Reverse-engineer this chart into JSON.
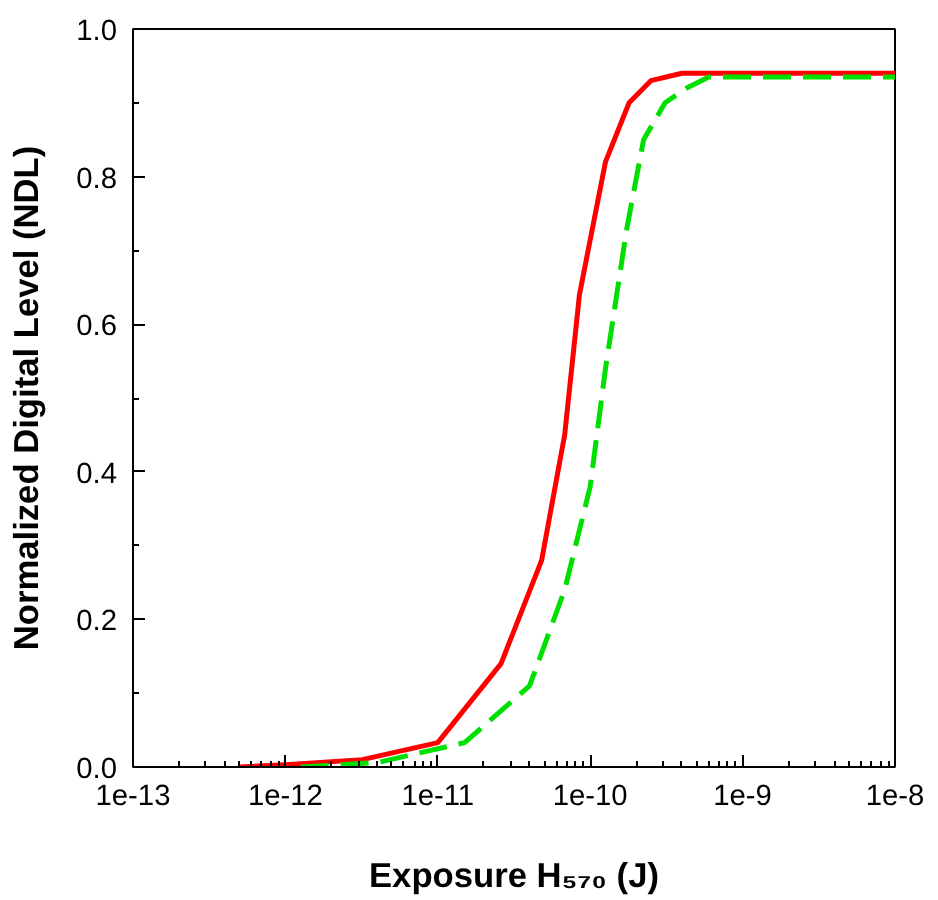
{
  "chart_data": {
    "type": "line",
    "xlabel": "Exposure H₅₇₀ (J)",
    "ylabel": "Normalized Digital Level (NDL)",
    "log": "x",
    "grid": false,
    "marker": "none",
    "xlim": [
      1e-13,
      1e-08
    ],
    "xticks": [
      {
        "value": 1e-13,
        "label": "1e-13"
      },
      {
        "value": 1e-12,
        "label": "1e-12"
      },
      {
        "value": 1e-11,
        "label": "1e-11"
      },
      {
        "value": 1e-10,
        "label": "1e-10"
      },
      {
        "value": 1e-09,
        "label": "1e-9"
      },
      {
        "value": 1e-08,
        "label": "1e-8"
      }
    ],
    "ylim": [
      0,
      1
    ],
    "yticks": [
      {
        "value": 0,
        "label": "0.0"
      },
      {
        "value": 0.2,
        "label": "0.2"
      },
      {
        "value": 0.4,
        "label": "0.4"
      },
      {
        "value": 0.6,
        "label": "0.6"
      },
      {
        "value": 0.8,
        "label": "0.8"
      },
      {
        "value": 1,
        "label": "1.0"
      }
    ],
    "series": [
      {
        "color": "#ff0000",
        "line_style": "solid",
        "x": [
          5e-13,
          1e-12,
          3.2e-12,
          1e-11,
          2.6e-11,
          4.8e-11,
          6.8e-11,
          8.5e-11,
          1.26e-10,
          1.8e-10,
          2.5e-10,
          4e-10,
          1e-08
        ],
        "values": [
          0,
          0.003,
          0.01,
          0.033,
          0.14,
          0.28,
          0.45,
          0.64,
          0.82,
          0.9,
          0.93,
          0.94,
          0.94
        ]
      },
      {
        "color": "#00e000",
        "line_style": "dashed",
        "x": [
          1.26e-12,
          4e-12,
          1.5e-11,
          4e-11,
          6.8e-11,
          1e-10,
          1.26e-10,
          1.74e-10,
          2.24e-10,
          3.1e-10,
          4.3e-10,
          6e-10,
          1e-08
        ],
        "values": [
          0,
          0.006,
          0.033,
          0.11,
          0.24,
          0.38,
          0.54,
          0.73,
          0.85,
          0.9,
          0.92,
          0.935,
          0.935
        ]
      }
    ]
  }
}
